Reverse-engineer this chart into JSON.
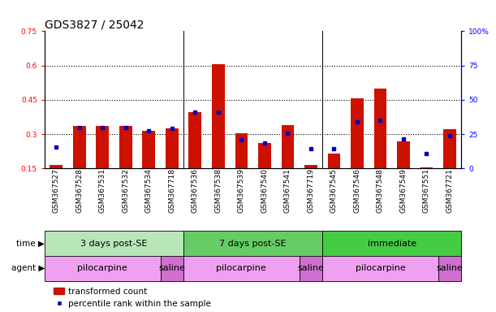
{
  "title": "GDS3827 / 25042",
  "samples": [
    "GSM367527",
    "GSM367528",
    "GSM367531",
    "GSM367532",
    "GSM367534",
    "GSM367718",
    "GSM367536",
    "GSM367538",
    "GSM367539",
    "GSM367540",
    "GSM367541",
    "GSM367719",
    "GSM367545",
    "GSM367546",
    "GSM367548",
    "GSM367549",
    "GSM367551",
    "GSM367721"
  ],
  "red_bars": [
    0.165,
    0.335,
    0.335,
    0.335,
    0.315,
    0.325,
    0.395,
    0.605,
    0.305,
    0.26,
    0.34,
    0.165,
    0.215,
    0.455,
    0.5,
    0.27,
    0.155,
    0.32
  ],
  "blue_squares": [
    0.245,
    0.33,
    0.33,
    0.33,
    0.315,
    0.325,
    0.395,
    0.395,
    0.275,
    0.26,
    0.305,
    0.235,
    0.235,
    0.355,
    0.36,
    0.28,
    0.215,
    0.295
  ],
  "ylim_left": [
    0.15,
    0.75
  ],
  "ylim_right": [
    0,
    100
  ],
  "yticks_left": [
    0.15,
    0.3,
    0.45,
    0.6,
    0.75
  ],
  "yticks_right": [
    0,
    25,
    50,
    75,
    100
  ],
  "ytick_right_labels": [
    "0",
    "25",
    "50",
    "75",
    "100%"
  ],
  "hlines": [
    0.3,
    0.45,
    0.6
  ],
  "time_groups": [
    {
      "label": "3 days post-SE",
      "start": 0,
      "end": 6,
      "color": "#b8e6b8"
    },
    {
      "label": "7 days post-SE",
      "start": 6,
      "end": 12,
      "color": "#66cc66"
    },
    {
      "label": "immediate",
      "start": 12,
      "end": 18,
      "color": "#44cc44"
    }
  ],
  "agent_groups": [
    {
      "label": "pilocarpine",
      "start": 0,
      "end": 5,
      "color": "#f0a0f0"
    },
    {
      "label": "saline",
      "start": 5,
      "end": 6,
      "color": "#d070d0"
    },
    {
      "label": "pilocarpine",
      "start": 6,
      "end": 11,
      "color": "#f0a0f0"
    },
    {
      "label": "saline",
      "start": 11,
      "end": 12,
      "color": "#d070d0"
    },
    {
      "label": "pilocarpine",
      "start": 12,
      "end": 17,
      "color": "#f0a0f0"
    },
    {
      "label": "saline",
      "start": 17,
      "end": 18,
      "color": "#d070d0"
    }
  ],
  "bar_color": "#cc1100",
  "square_color": "#0000bb",
  "bar_width": 0.55,
  "title_fontsize": 10,
  "tick_fontsize": 6.5,
  "label_fontsize": 8,
  "legend_fontsize": 7.5
}
